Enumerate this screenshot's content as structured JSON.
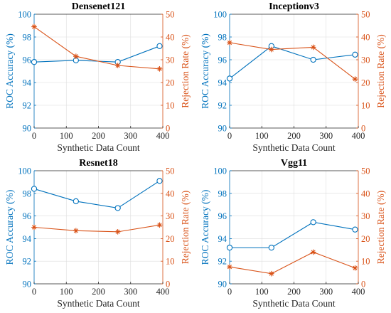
{
  "colors": {
    "left_axis": "#0072BD",
    "right_axis": "#D95319",
    "frame": "#262626",
    "grid": "#dcdcdc"
  },
  "chart_data": [
    {
      "type": "line",
      "title": "Densenet121",
      "xlabel": "Synthetic Data Count",
      "ylabel_left": "ROC Accuracy (%)",
      "ylabel_right": "Rejection Rate (%)",
      "x": [
        0,
        130,
        260,
        390
      ],
      "xlim": [
        0,
        400
      ],
      "xticks": [
        0,
        100,
        200,
        300,
        400
      ],
      "ylim_left": [
        90,
        100
      ],
      "yticks_left": [
        90,
        92,
        94,
        96,
        98,
        100
      ],
      "ylim_right": [
        0,
        50
      ],
      "yticks_right": [
        0,
        10,
        20,
        30,
        40,
        50
      ],
      "grid": true,
      "series": [
        {
          "axis": "left",
          "marker": "circle",
          "values": [
            95.8,
            95.95,
            95.8,
            97.2
          ]
        },
        {
          "axis": "right",
          "marker": "star",
          "values": [
            44.5,
            31.5,
            27.5,
            26
          ]
        }
      ]
    },
    {
      "type": "line",
      "title": "Inceptionv3",
      "xlabel": "Synthetic Data Count",
      "ylabel_left": "ROC Accuracy (%)",
      "ylabel_right": "Rejection Rate (%)",
      "x": [
        0,
        130,
        260,
        390
      ],
      "xlim": [
        0,
        400
      ],
      "xticks": [
        0,
        100,
        200,
        300,
        400
      ],
      "ylim_left": [
        90,
        100
      ],
      "yticks_left": [
        90,
        92,
        94,
        96,
        98,
        100
      ],
      "ylim_right": [
        0,
        50
      ],
      "yticks_right": [
        0,
        10,
        20,
        30,
        40,
        50
      ],
      "grid": true,
      "series": [
        {
          "axis": "left",
          "marker": "circle",
          "values": [
            94.35,
            97.2,
            96.0,
            96.45
          ]
        },
        {
          "axis": "right",
          "marker": "star",
          "values": [
            37.5,
            34.5,
            35.5,
            21.5
          ]
        }
      ]
    },
    {
      "type": "line",
      "title": "Resnet18",
      "xlabel": "Synthetic Data Count",
      "ylabel_left": "ROC Accuracy (%)",
      "ylabel_right": "Rejection Rate (%)",
      "x": [
        0,
        130,
        260,
        390
      ],
      "xlim": [
        0,
        400
      ],
      "xticks": [
        0,
        100,
        200,
        300,
        400
      ],
      "ylim_left": [
        90,
        100
      ],
      "yticks_left": [
        90,
        92,
        94,
        96,
        98,
        100
      ],
      "ylim_right": [
        0,
        50
      ],
      "yticks_right": [
        0,
        10,
        20,
        30,
        40,
        50
      ],
      "grid": true,
      "series": [
        {
          "axis": "left",
          "marker": "circle",
          "values": [
            98.4,
            97.3,
            96.7,
            99.1
          ]
        },
        {
          "axis": "right",
          "marker": "star",
          "values": [
            25,
            23.5,
            23,
            26
          ]
        }
      ]
    },
    {
      "type": "line",
      "title": "Vgg11",
      "xlabel": "Synthetic Data Count",
      "ylabel_left": "ROC Accuracy (%)",
      "ylabel_right": "Rejection Rate (%)",
      "x": [
        0,
        130,
        260,
        390
      ],
      "xlim": [
        0,
        400
      ],
      "xticks": [
        0,
        100,
        200,
        300,
        400
      ],
      "ylim_left": [
        90,
        100
      ],
      "yticks_left": [
        90,
        92,
        94,
        96,
        98,
        100
      ],
      "ylim_right": [
        0,
        50
      ],
      "yticks_right": [
        0,
        10,
        20,
        30,
        40,
        50
      ],
      "grid": true,
      "series": [
        {
          "axis": "left",
          "marker": "circle",
          "values": [
            93.2,
            93.2,
            95.45,
            94.8
          ]
        },
        {
          "axis": "right",
          "marker": "star",
          "values": [
            7.5,
            4.5,
            14,
            7
          ]
        }
      ]
    }
  ]
}
